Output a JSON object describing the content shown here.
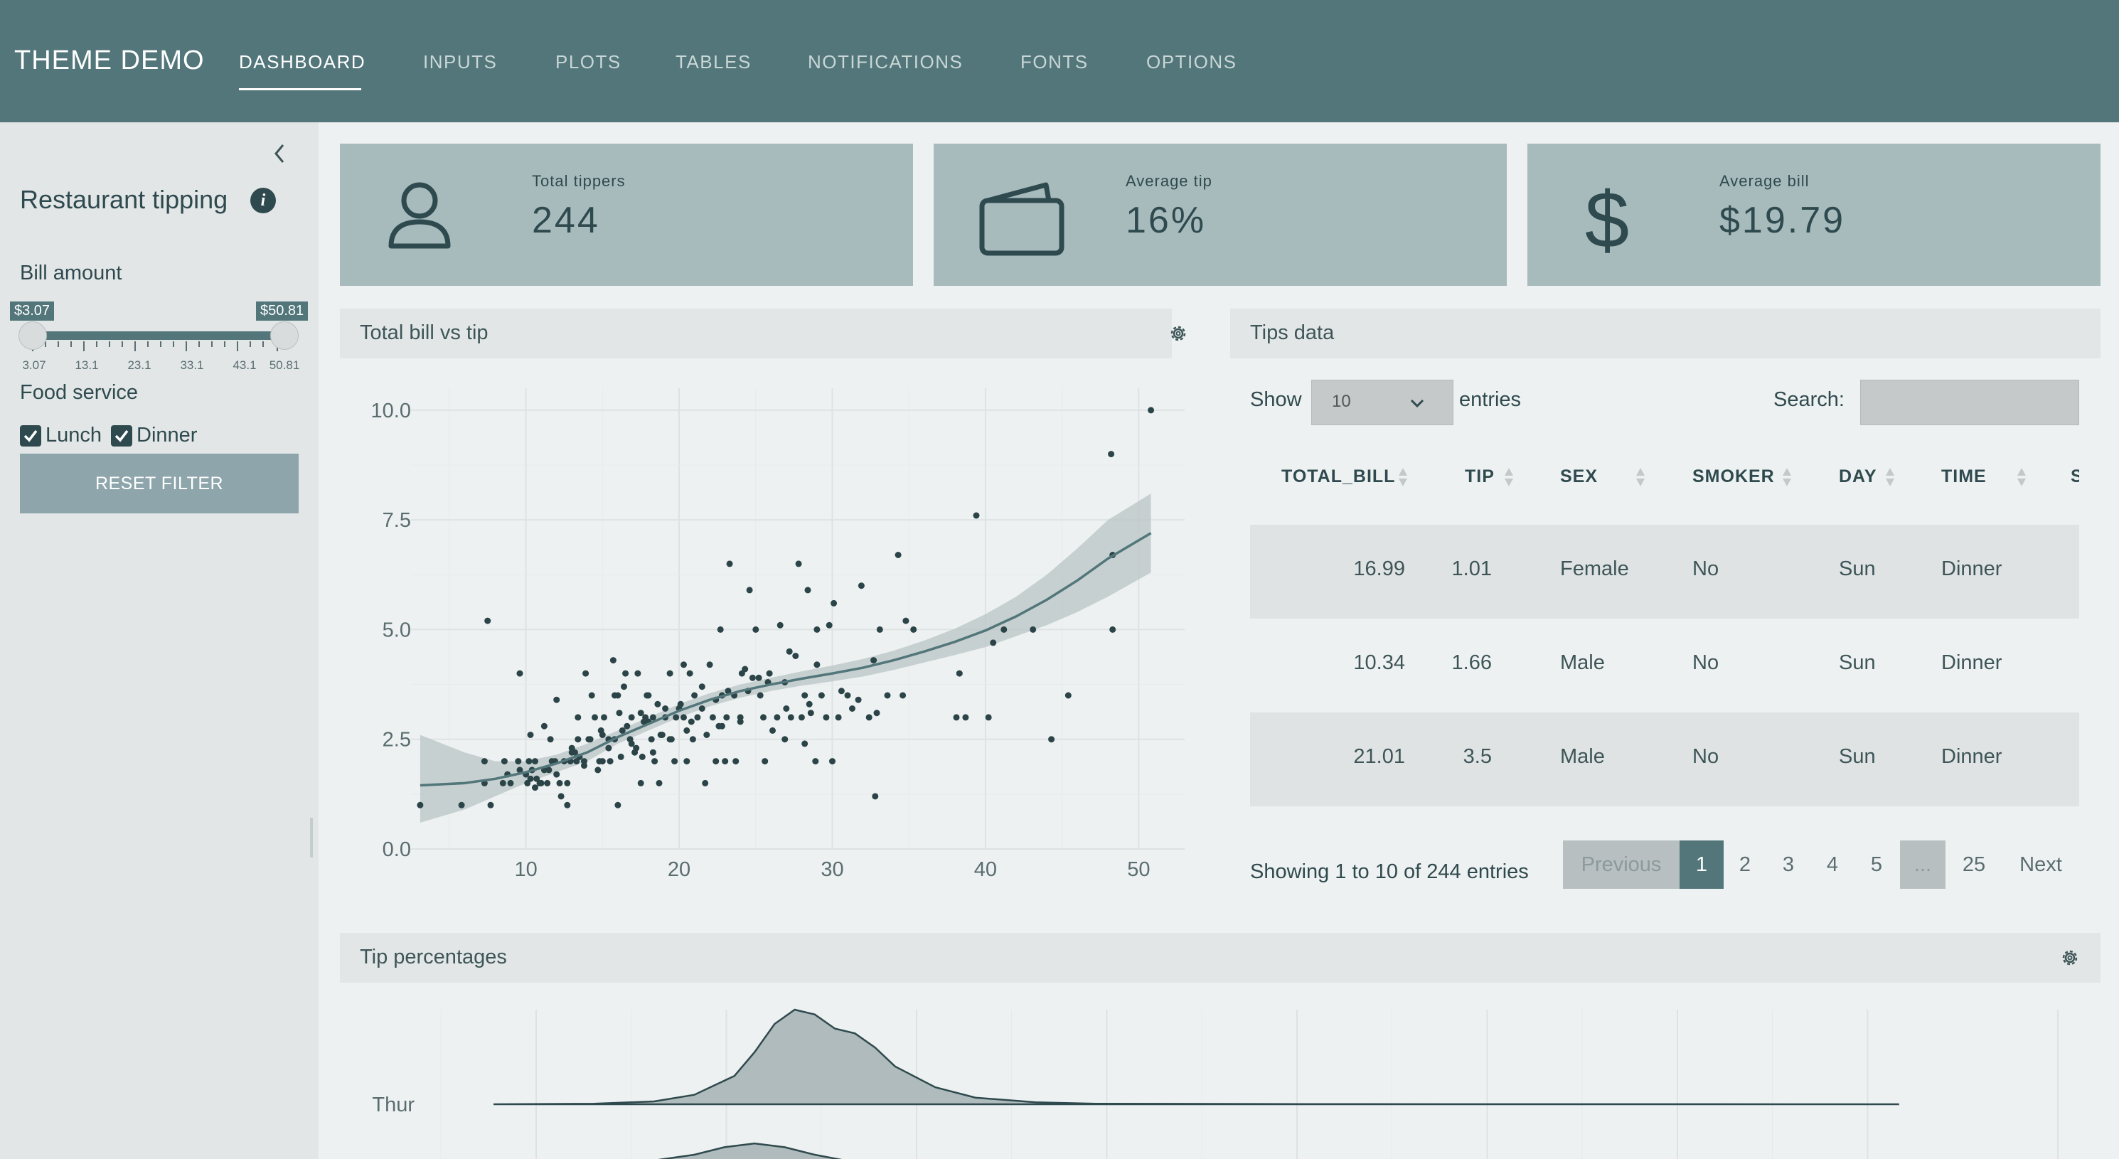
{
  "navbar": {
    "brand": "THEME DEMO",
    "tabs": [
      {
        "label": "DASHBOARD",
        "active": true
      },
      {
        "label": "INPUTS"
      },
      {
        "label": "PLOTS"
      },
      {
        "label": "TABLES"
      },
      {
        "label": "NOTIFICATIONS"
      },
      {
        "label": "FONTS"
      },
      {
        "label": "OPTIONS"
      }
    ]
  },
  "sidebar": {
    "title": "Restaurant tipping",
    "bill_label": "Bill amount",
    "slider": {
      "min_label": "$3.07",
      "max_label": "$50.81",
      "ticks": [
        "3.07",
        "13.1",
        "23.1",
        "33.1",
        "43.1",
        "50.81"
      ]
    },
    "food_label": "Food service",
    "lunch_label": "Lunch",
    "dinner_label": "Dinner",
    "lunch_checked": true,
    "dinner_checked": true,
    "reset_label": "RESET FILTER"
  },
  "value_boxes": [
    {
      "label": "Total tippers",
      "value": "244",
      "icon": "person-icon"
    },
    {
      "label": "Average tip",
      "value": "16%",
      "icon": "wallet-icon"
    },
    {
      "label": "Average bill",
      "value": "$19.79",
      "icon": "dollar-icon"
    }
  ],
  "scatter_card": {
    "title": "Total bill vs tip"
  },
  "table_card": {
    "title": "Tips data",
    "show_label": "Show",
    "page_size": "10",
    "entries_label": "entries",
    "search_label": "Search:",
    "search_value": "",
    "columns": [
      "TOTAL_BILL",
      "TIP",
      "SEX",
      "SMOKER",
      "DAY",
      "TIME",
      "S"
    ],
    "rows": [
      [
        "16.99",
        "1.01",
        "Female",
        "No",
        "Sun",
        "Dinner"
      ],
      [
        "10.34",
        "1.66",
        "Male",
        "No",
        "Sun",
        "Dinner"
      ],
      [
        "21.01",
        "3.5",
        "Male",
        "No",
        "Sun",
        "Dinner"
      ]
    ],
    "info": "Showing 1 to 10 of 244 entries",
    "pagination": {
      "previous": "Previous",
      "pages": [
        "1",
        "2",
        "3",
        "4",
        "5"
      ],
      "ellipsis": "...",
      "last": "25",
      "next": "Next"
    }
  },
  "ridge_card": {
    "title": "Tip percentages",
    "categories": [
      "Thur"
    ]
  },
  "colors": {
    "navbar": "#52767a",
    "value_box": "#a7bbbd",
    "accent": "#2f4a4e",
    "sidebar": "#e2e6e7",
    "background": "#eef1f1"
  },
  "chart_data": [
    {
      "type": "scatter",
      "title": "",
      "xlabel": "",
      "ylabel": "",
      "xlim": [
        2.5,
        53
      ],
      "ylim": [
        0,
        10.5
      ],
      "x_ticks": [
        10,
        20,
        30,
        40,
        50
      ],
      "y_ticks": [
        "0.0",
        "2.5",
        "5.0",
        "7.5",
        "10.0"
      ],
      "grid": true,
      "x": [
        3.1,
        5.8,
        7.5,
        7.3,
        7.7,
        8.5,
        8.6,
        9.0,
        9.5,
        9.6,
        10.0,
        10.1,
        10.2,
        10.3,
        10.4,
        10.6,
        10.7,
        11.0,
        11.2,
        11.4,
        11.6,
        11.9,
        12.0,
        12.2,
        12.5,
        12.7,
        12.7,
        13.0,
        13.3,
        13.4,
        13.4,
        13.8,
        13.9,
        14.1,
        14.3,
        14.5,
        14.8,
        15.0,
        15.1,
        15.4,
        15.5,
        15.7,
        15.8,
        16.0,
        16.0,
        16.3,
        16.4,
        16.5,
        16.8,
        16.9,
        17.1,
        17.3,
        17.5,
        17.8,
        17.9,
        18.0,
        18.2,
        18.3,
        18.4,
        18.7,
        18.8,
        19.1,
        19.4,
        19.5,
        19.7,
        19.8,
        20.1,
        20.3,
        20.5,
        20.7,
        20.9,
        21.0,
        21.5,
        21.7,
        22.0,
        22.2,
        22.4,
        22.7,
        22.8,
        23.1,
        23.3,
        23.7,
        24.0,
        24.1,
        24.5,
        24.6,
        25.0,
        25.3,
        25.6,
        25.9,
        26.4,
        26.6,
        26.9,
        27.2,
        27.3,
        27.8,
        28.0,
        28.2,
        28.4,
        28.6,
        28.9,
        29.0,
        29.3,
        29.8,
        30.0,
        30.1,
        30.4,
        31.0,
        31.3,
        31.9,
        32.4,
        32.7,
        32.8,
        33.1,
        33.6,
        34.3,
        34.6,
        34.8,
        35.3,
        38.1,
        38.3,
        38.7,
        39.4,
        40.2,
        40.5,
        41.2,
        43.1,
        44.3,
        45.4,
        48.2,
        48.3,
        48.3,
        50.8,
        7.3,
        9.6,
        10.3,
        11.7,
        13.0,
        14.2,
        15.0,
        16.6,
        17.5,
        18.0,
        19.1,
        20.3,
        21.5,
        22.4,
        23.2,
        24.3,
        25.2,
        26.9,
        27.6,
        29.0,
        30.6,
        32.9,
        10.6,
        12.0,
        12.9,
        13.8,
        15.4,
        16.2,
        17.2,
        18.3,
        19.4,
        20.5,
        21.8,
        22.8,
        24.0,
        25.5,
        27.0,
        28.5,
        8.8,
        10.9,
        11.5,
        12.3,
        13.5,
        14.7,
        15.8,
        16.9,
        17.7,
        18.9,
        20.0,
        21.2,
        22.6,
        23.6,
        24.8,
        26.1,
        29.6,
        31.7,
        11.2,
        13.2,
        14.9,
        16.1,
        17.6,
        18.6,
        20.8,
        23.0,
        25.8,
        28.2
      ],
      "y": [
        1.0,
        1.0,
        5.2,
        1.5,
        1.0,
        1.5,
        2.0,
        1.5,
        2.0,
        4.0,
        1.7,
        1.5,
        2.0,
        2.6,
        1.8,
        2.0,
        1.6,
        1.5,
        1.8,
        1.5,
        2.5,
        2.0,
        3.4,
        1.5,
        2.0,
        1.0,
        1.5,
        2.3,
        2.0,
        2.5,
        3.0,
        2.0,
        4.0,
        2.5,
        3.5,
        3.0,
        2.0,
        2.0,
        3.0,
        2.5,
        2.0,
        4.3,
        3.5,
        3.5,
        1.0,
        2.7,
        3.7,
        4.0,
        2.5,
        3.0,
        2.2,
        4.0,
        1.5,
        3.0,
        3.5,
        3.5,
        2.5,
        3.0,
        2.0,
        1.5,
        2.6,
        3.0,
        4.0,
        2.5,
        2.0,
        3.0,
        3.3,
        4.2,
        2.0,
        4.0,
        2.5,
        3.5,
        3.2,
        1.5,
        4.2,
        3.0,
        2.0,
        5.0,
        3.5,
        3.0,
        6.5,
        2.0,
        2.9,
        4.0,
        3.6,
        5.9,
        5.0,
        3.5,
        2.0,
        4.0,
        3.0,
        5.1,
        2.5,
        4.5,
        3.0,
        6.5,
        3.0,
        3.5,
        5.9,
        3.1,
        2.0,
        5.0,
        3.5,
        5.1,
        2.0,
        5.6,
        3.0,
        3.5,
        3.2,
        6.0,
        3.0,
        4.3,
        1.2,
        5.0,
        3.5,
        6.7,
        3.5,
        5.2,
        5.0,
        3.0,
        4.0,
        3.0,
        7.6,
        3.0,
        4.7,
        5.0,
        5.0,
        2.5,
        3.5,
        9.0,
        5.0,
        6.7,
        10.0,
        2.0,
        1.8,
        1.6,
        2.0,
        2.2,
        2.5,
        2.6,
        2.8,
        3.1,
        2.9,
        3.2,
        3.0,
        3.7,
        3.4,
        3.6,
        4.1,
        3.9,
        3.8,
        4.4,
        4.2,
        3.6,
        3.1,
        1.4,
        1.7,
        2.0,
        1.9,
        2.3,
        2.1,
        2.3,
        2.2,
        2.5,
        2.7,
        2.6,
        2.8,
        3.0,
        3.0,
        3.2,
        3.3,
        1.7,
        1.5,
        1.8,
        1.2,
        2.1,
        1.8,
        2.5,
        2.4,
        2.9,
        2.6,
        3.2,
        3.0,
        2.8,
        3.5,
        3.9,
        2.7,
        3.0,
        3.4,
        2.8,
        2.2,
        2.7,
        3.1,
        2.1,
        3.3,
        2.9,
        2.0,
        3.8,
        2.4
      ],
      "trend_x": [
        3.1,
        6,
        8,
        10,
        12,
        14,
        16,
        18,
        20,
        22,
        24,
        26,
        28,
        30,
        32,
        34,
        36,
        38,
        40,
        42,
        44,
        46,
        48,
        50.8
      ],
      "trend_y": [
        1.45,
        1.5,
        1.6,
        1.75,
        1.95,
        2.2,
        2.55,
        2.85,
        3.15,
        3.4,
        3.6,
        3.75,
        3.88,
        4.0,
        4.13,
        4.3,
        4.5,
        4.72,
        4.98,
        5.3,
        5.68,
        6.12,
        6.62,
        7.2
      ],
      "band_upper": [
        2.6,
        2.2,
        2.0,
        2.0,
        2.15,
        2.4,
        2.7,
        3.0,
        3.3,
        3.55,
        3.75,
        3.9,
        4.05,
        4.18,
        4.33,
        4.52,
        4.75,
        5.02,
        5.35,
        5.75,
        6.25,
        6.85,
        7.5,
        8.1
      ],
      "band_lower": [
        0.6,
        0.9,
        1.2,
        1.5,
        1.75,
        2.0,
        2.4,
        2.7,
        3.0,
        3.25,
        3.45,
        3.6,
        3.72,
        3.82,
        3.93,
        4.08,
        4.25,
        4.42,
        4.6,
        4.85,
        5.1,
        5.4,
        5.75,
        6.3
      ]
    },
    {
      "type": "area",
      "title": "",
      "categories": [
        "Thur"
      ],
      "xlim": [
        0,
        0.75
      ],
      "density_x": [
        0,
        0.05,
        0.08,
        0.1,
        0.12,
        0.13,
        0.14,
        0.15,
        0.16,
        0.17,
        0.18,
        0.19,
        0.2,
        0.22,
        0.24,
        0.27,
        0.3,
        0.4,
        0.5,
        0.6,
        0.7
      ],
      "density_y": [
        0,
        0.005,
        0.03,
        0.1,
        0.3,
        0.55,
        0.85,
        1.0,
        0.95,
        0.8,
        0.75,
        0.6,
        0.4,
        0.18,
        0.07,
        0.02,
        0.006,
        0.002,
        0.001,
        0.001,
        0
      ]
    }
  ]
}
